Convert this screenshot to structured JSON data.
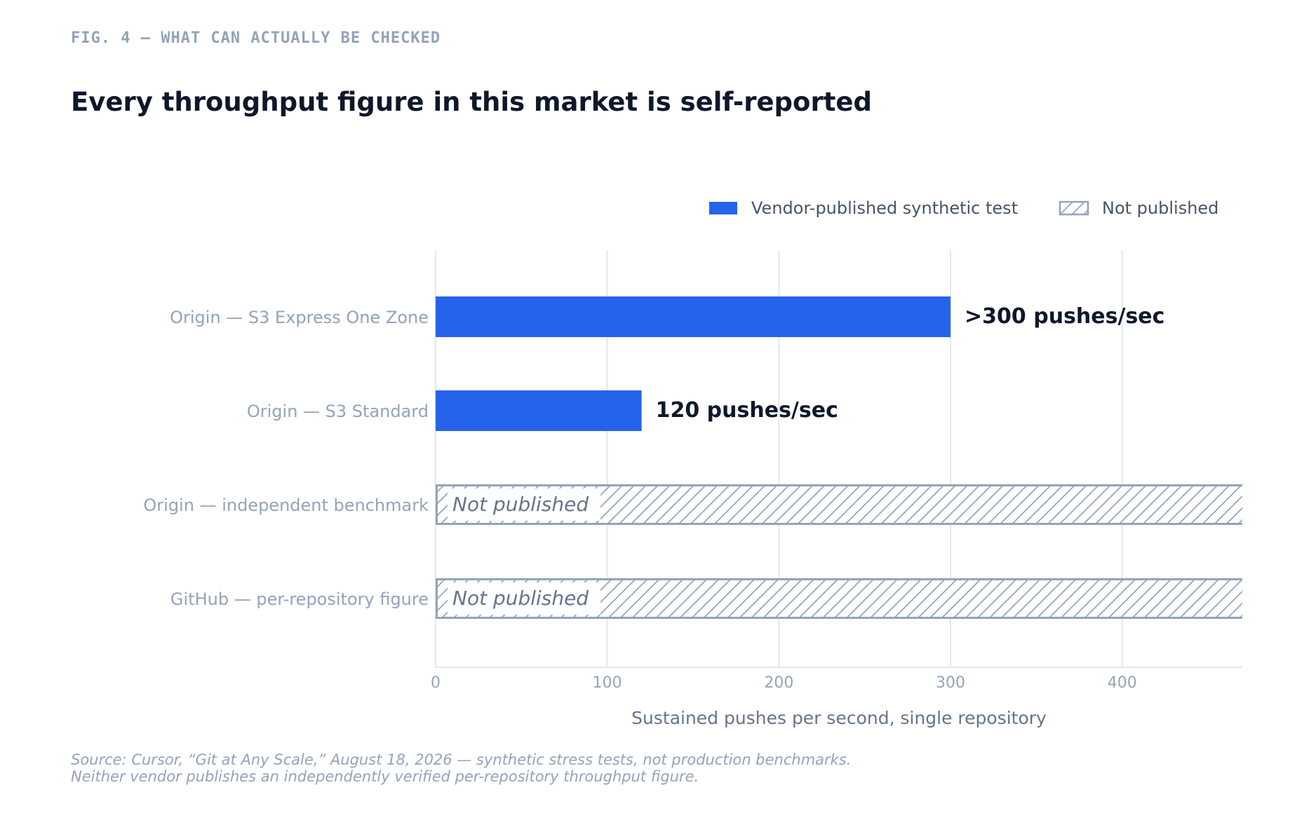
{
  "header": {
    "eyebrow": "FIG. 4 — WHAT CAN ACTUALLY BE CHECKED",
    "title": "Every throughput figure in this market is self-reported"
  },
  "footer": {
    "source_line1": "Source: Cursor, “Git at Any Scale,” August 18, 2026 — synthetic stress tests, not production benchmarks.",
    "source_line2": "Neither vendor publishes an independently verified per-repository throughput figure."
  },
  "colors": {
    "vendor": "#2563eb",
    "not_published": "#94a3b8",
    "grid": "#e2e8f0",
    "category_text": "#94a3b8",
    "value_text": "#0f172a"
  },
  "chart_data": {
    "type": "bar",
    "orientation": "horizontal",
    "xlabel": "Sustained pushes per second, single repository",
    "xlim": [
      0,
      470
    ],
    "xticks": [
      0,
      100,
      200,
      300,
      400
    ],
    "grid": true,
    "legend_position": "top-right",
    "legend": [
      {
        "label": "Vendor-published synthetic test",
        "style": "solid"
      },
      {
        "label": "Not published",
        "style": "hatched"
      }
    ],
    "categories": [
      "Origin — S3 Express One Zone",
      "Origin — S3 Standard",
      "Origin — independent benchmark",
      "GitHub — per-repository figure"
    ],
    "bars": [
      {
        "value": 300,
        "status": "vendor",
        "label": ">300 pushes/sec"
      },
      {
        "value": 120,
        "status": "vendor",
        "label": "120 pushes/sec"
      },
      {
        "value": null,
        "status": "not_published",
        "label": "Not published"
      },
      {
        "value": null,
        "status": "not_published",
        "label": "Not published"
      }
    ]
  }
}
